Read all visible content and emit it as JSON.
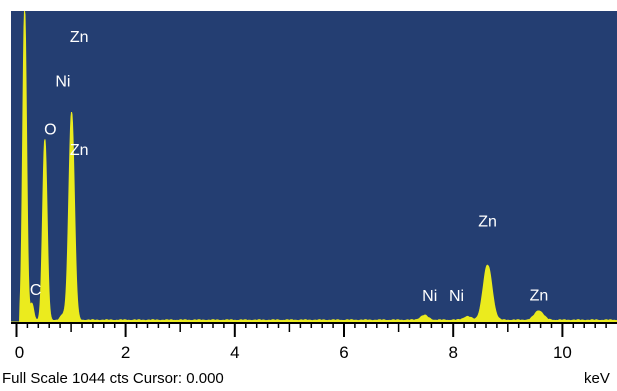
{
  "chart_data": {
    "type": "area",
    "title": "",
    "xlabel": "",
    "ylabel": "",
    "xlim": [
      -0.1,
      11.0
    ],
    "ylim": [
      0,
      1044
    ],
    "grid": false,
    "legend": "none",
    "unit": "keV",
    "x_ticks": [
      "0",
      "2",
      "4",
      "6",
      "8",
      "10"
    ],
    "peaks": [
      {
        "element": "",
        "energy": 0.15,
        "counts": 1044,
        "width": 0.035
      },
      {
        "element": "C",
        "energy": 0.28,
        "counts": 55,
        "width": 0.035
      },
      {
        "element": "O",
        "energy": 0.52,
        "counts": 608,
        "width": 0.04
      },
      {
        "element": "Ni",
        "energy": 0.85,
        "counts": 18,
        "width": 0.04
      },
      {
        "element": "Zn",
        "energy": 1.01,
        "counts": 700,
        "width": 0.05
      },
      {
        "element": "Ni",
        "energy": 7.47,
        "counts": 16,
        "width": 0.07
      },
      {
        "element": "Ni",
        "energy": 8.26,
        "counts": 12,
        "width": 0.07
      },
      {
        "element": "Zn",
        "energy": 8.63,
        "counts": 185,
        "width": 0.08
      },
      {
        "element": "Zn",
        "energy": 9.57,
        "counts": 32,
        "width": 0.08
      }
    ],
    "labels": [
      {
        "text": "Zn",
        "energy": 1.15,
        "counts": 940
      },
      {
        "text": "Ni",
        "energy": 0.85,
        "counts": 790
      },
      {
        "text": "O",
        "energy": 0.62,
        "counts": 630
      },
      {
        "text": "Zn",
        "energy": 1.15,
        "counts": 560
      },
      {
        "text": "C",
        "energy": 0.35,
        "counts": 90
      },
      {
        "text": "Ni",
        "energy": 7.57,
        "counts": 70
      },
      {
        "text": "Ni",
        "energy": 8.06,
        "counts": 70
      },
      {
        "text": "Zn",
        "energy": 8.63,
        "counts": 320
      },
      {
        "text": "Zn",
        "energy": 9.57,
        "counts": 72
      }
    ],
    "background_counts": 8
  },
  "colors": {
    "plot_background": "#243e72",
    "spectrum": "#ebeb1e",
    "label_text": "#ffffff",
    "axis": "#000000"
  },
  "footer": {
    "status": "Full Scale 1044 cts Cursor: 0.000",
    "unit": "keV"
  }
}
